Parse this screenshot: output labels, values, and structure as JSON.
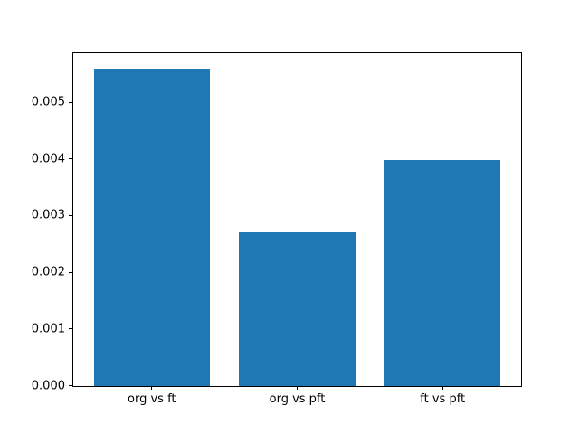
{
  "figure": {
    "background": "#ffffff",
    "spine_color": "#000000",
    "tick_color": "#000000",
    "text_color": "#000000"
  },
  "chart_data": {
    "type": "bar",
    "title": "",
    "xlabel": "",
    "ylabel": "",
    "categories": [
      "org vs ft",
      "org vs pft",
      "ft vs pft"
    ],
    "values": [
      0.00559,
      0.00271,
      0.00398
    ],
    "bar_color": "#1f77b4",
    "bar_width_fraction": 0.8,
    "x_axis_margin": 0.05,
    "ylim": [
      0,
      0.00587
    ],
    "yticks": [
      0.0,
      0.001,
      0.002,
      0.003,
      0.004,
      0.005
    ],
    "ytick_labels": [
      "0.000",
      "0.001",
      "0.002",
      "0.003",
      "0.004",
      "0.005"
    ],
    "grid": false,
    "legend": null
  }
}
